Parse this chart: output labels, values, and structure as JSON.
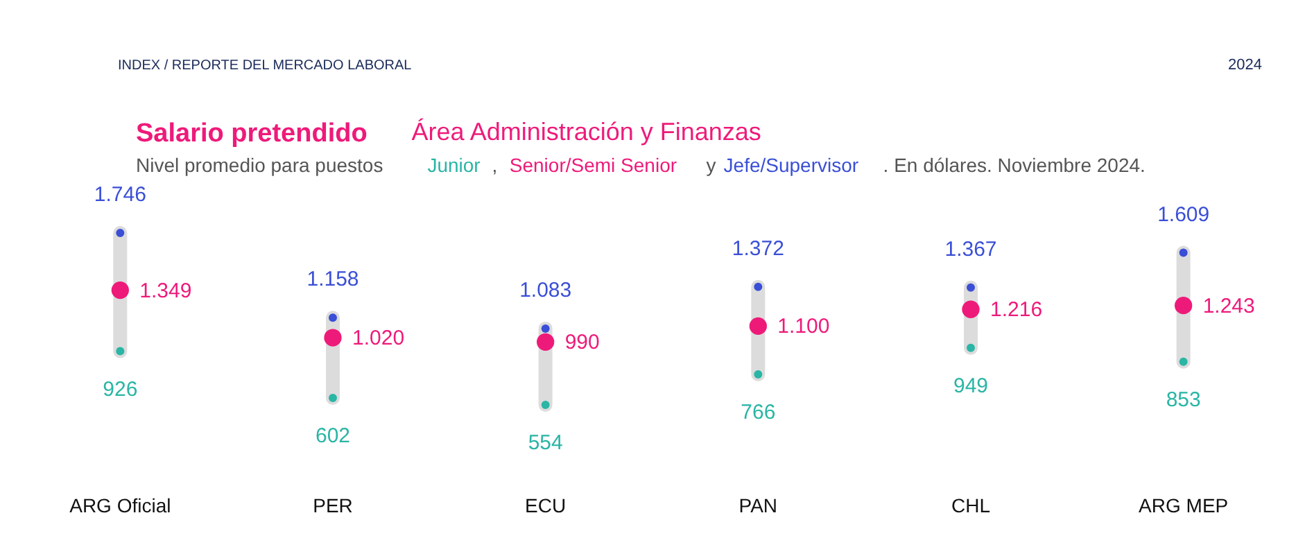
{
  "chart_data": {
    "type": "scatter",
    "title": "Salario pretendido",
    "subtitle": "Área Administración y Finanzas",
    "legend_title": "Nivel promedio para puestos",
    "annotations": [
      "INDEX / REPORTE DEL MERCADO LABORAL",
      "2024",
      ",",
      "y",
      ". En dólares. Noviembre 2024."
    ],
    "categories": [
      "ARG Oficial",
      "PER",
      "ECU",
      "PAN",
      "CHL",
      "ARG MEP"
    ],
    "series": [
      {
        "name": "Junior",
        "color": "#2ab5a5",
        "marker": "circle",
        "values": [
          926,
          602,
          554,
          766,
          949,
          853
        ],
        "value_labels": [
          "926",
          "602",
          "554",
          "766",
          "949",
          "853"
        ]
      },
      {
        "name": "Senior/Semi Senior",
        "color": "#ee1a7a",
        "marker": "circle",
        "values": [
          1349,
          1020,
          990,
          1100,
          1216,
          1243
        ],
        "value_labels": [
          "1.349",
          "1.020",
          "990",
          "1.100",
          "1.216",
          "1.243"
        ]
      },
      {
        "name": "Jefe/Supervisor",
        "color": "#3a4fd6",
        "marker": "circle",
        "values": [
          1746,
          1158,
          1083,
          1372,
          1367,
          1609
        ],
        "value_labels": [
          "1.746",
          "1.158",
          "1.083",
          "1.372",
          "1.367",
          "1.609"
        ]
      }
    ]
  }
}
